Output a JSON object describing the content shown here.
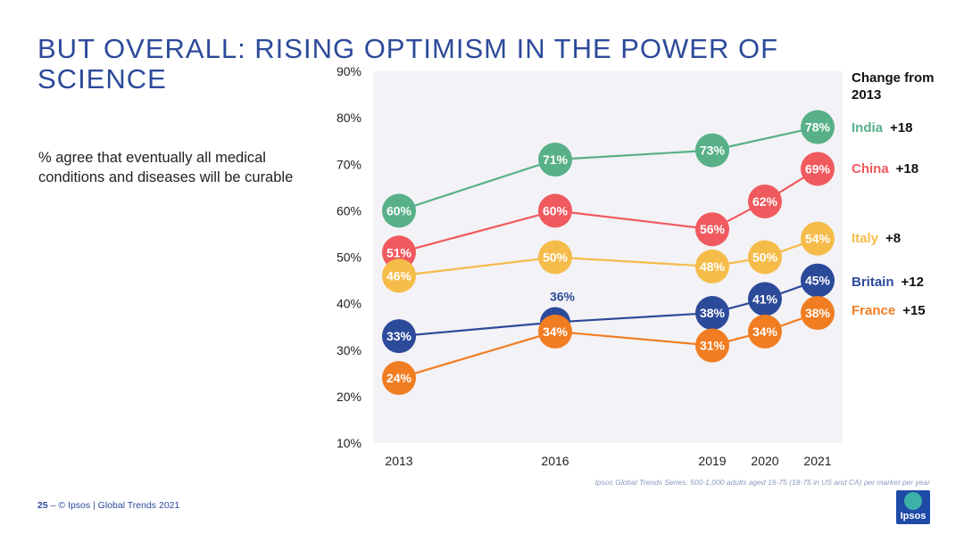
{
  "title": "BUT OVERALL: RISING OPTIMISM IN THE POWER OF SCIENCE",
  "subtitle": "% agree that eventually all medical conditions and diseases will be curable",
  "change_header": "Change from 2013",
  "legend": [
    {
      "name": "India",
      "change": "+18",
      "color": "#58b088"
    },
    {
      "name": "China",
      "change": "+18",
      "color": "#f05a5e"
    },
    {
      "name": "Italy",
      "change": "+8",
      "color": "#f6bc4a"
    },
    {
      "name": "Britain",
      "change": "+12",
      "color": "#2c4a9a"
    },
    {
      "name": "France",
      "change": "+15",
      "color": "#f17d22"
    }
  ],
  "footer": {
    "page": "25",
    "dash": "–",
    "text": "© Ipsos | Global Trends 2021"
  },
  "source": "Ipsos Global Trends Series: 500-1,000 adults aged 16-75 (18-75 in US and CA) per market per year",
  "logo_text": "Ipsos",
  "chart_data": {
    "type": "line",
    "x": [
      "2013",
      "2016",
      "2019",
      "2020",
      "2021"
    ],
    "ylim": [
      10,
      90
    ],
    "yticks": [
      "10%",
      "20%",
      "30%",
      "40%",
      "50%",
      "60%",
      "70%",
      "80%",
      "90%"
    ],
    "series": [
      {
        "name": "India",
        "color": "#58b088",
        "values": [
          60,
          71,
          73,
          null,
          78
        ],
        "labels": [
          "60%",
          "71%",
          "73%",
          null,
          "78%"
        ]
      },
      {
        "name": "China",
        "color": "#f05a5e",
        "values": [
          51,
          60,
          56,
          62,
          69
        ],
        "labels": [
          "51%",
          "60%",
          "56%",
          "62%",
          "69%"
        ]
      },
      {
        "name": "Italy",
        "color": "#f6bc4a",
        "values": [
          46,
          50,
          48,
          50,
          54
        ],
        "labels": [
          "46%",
          "50%",
          "48%",
          "50%",
          "54%"
        ]
      },
      {
        "name": "Britain",
        "color": "#2c4a9a",
        "values": [
          33,
          36,
          38,
          41,
          45
        ],
        "labels": [
          "33%",
          "36%",
          "38%",
          "41%",
          "45%"
        ]
      },
      {
        "name": "France",
        "color": "#f17d22",
        "values": [
          24,
          34,
          31,
          34,
          38
        ],
        "labels": [
          "24%",
          "34%",
          "31%",
          "34%",
          "38%"
        ]
      }
    ]
  }
}
